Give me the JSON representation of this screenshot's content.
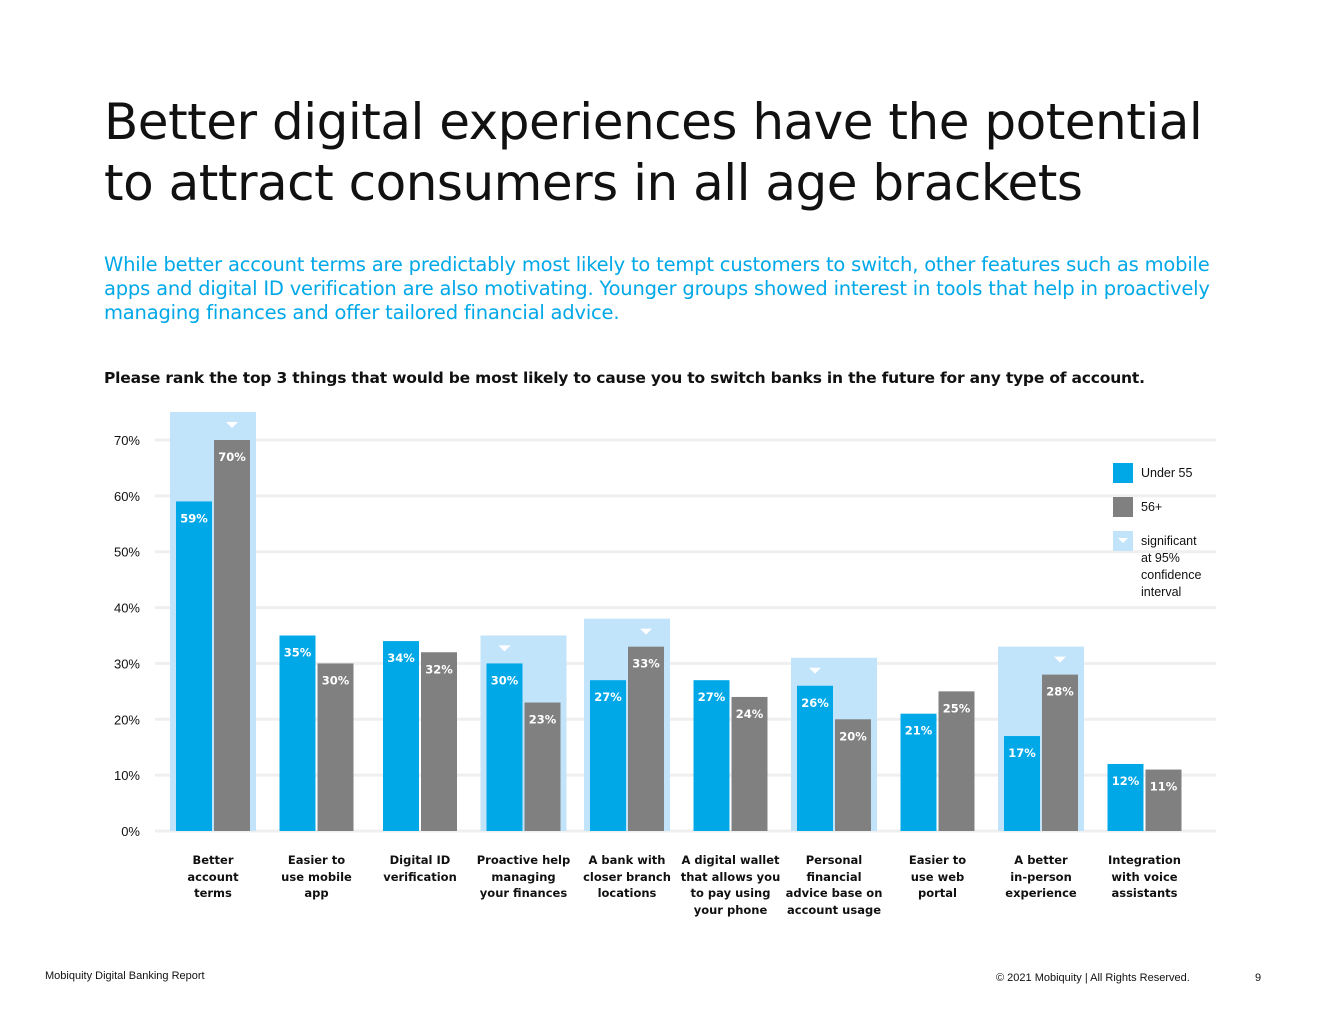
{
  "page": {
    "title_line1": "Better digital experiences have the potential",
    "title_line2": "to attract consumers in all age brackets",
    "subtitle": "While better account terms are predictably most likely to tempt customers to switch, other features such as mobile apps and digital ID verification are also motivating. Younger groups showed interest in tools that help in proactively managing finances and offer tailored financial advice.",
    "question": "Please rank the top 3 things that would be most likely to cause you to switch banks in the future for any type of account.",
    "footer_left": "Mobiquity Digital Banking Report",
    "footer_right": "© 2021 Mobiquity  |  All Rights Reserved.",
    "page_number": "9"
  },
  "colors": {
    "accent": "#00a8e8",
    "under55": "#00a8e8",
    "over56": "#808080",
    "significant": "#c2e4fa",
    "text": "#111111",
    "grid": "#efefef"
  },
  "chart_data": {
    "type": "bar",
    "title": "Please rank the top 3 things that would be most likely to cause you to switch banks in the future for any type of account.",
    "xlabel": "",
    "ylabel": "",
    "ylim": [
      0,
      70
    ],
    "yticks": [
      0,
      10,
      20,
      30,
      40,
      50,
      60,
      70
    ],
    "ytick_labels": [
      "0%",
      "10%",
      "20%",
      "30%",
      "40%",
      "50%",
      "60%",
      "70%"
    ],
    "categories": [
      "Better account terms",
      "Easier to use mobile app",
      "Digital ID verification",
      "Proactive help managing your finances",
      "A bank with closer branch locations",
      "A digital wallet that allows you to pay using your phone",
      "Personal financial advice base on account usage",
      "Easier to use web portal",
      "A better in-person experience",
      "Integration with voice assistants"
    ],
    "category_lines": [
      [
        "Better",
        "account",
        "terms"
      ],
      [
        "Easier to",
        "use mobile",
        "app"
      ],
      [
        "Digital ID",
        "verification"
      ],
      [
        "Proactive help",
        "managing",
        "your finances"
      ],
      [
        "A bank with",
        "closer branch",
        "locations"
      ],
      [
        "A digital wallet",
        "that allows you",
        "to pay using",
        "your phone"
      ],
      [
        "Personal",
        "financial",
        "advice base on",
        "account usage"
      ],
      [
        "Easier to",
        "use web",
        "portal"
      ],
      [
        "A better",
        "in-person",
        "experience"
      ],
      [
        "Integration",
        "with voice",
        "assistants"
      ]
    ],
    "series": [
      {
        "name": "Under 55",
        "values": [
          59,
          35,
          34,
          30,
          27,
          27,
          26,
          21,
          17,
          12
        ],
        "labels": [
          "59%",
          "35%",
          "34%",
          "30%",
          "27%",
          "27%",
          "26%",
          "21%",
          "17%",
          "12%"
        ]
      },
      {
        "name": "56+",
        "values": [
          70,
          30,
          32,
          23,
          33,
          24,
          20,
          25,
          28,
          11
        ],
        "labels": [
          "70%",
          "30%",
          "32%",
          "23%",
          "33%",
          "24%",
          "20%",
          "25%",
          "28%",
          "11%"
        ]
      }
    ],
    "significant": [
      true,
      false,
      false,
      true,
      true,
      false,
      true,
      false,
      true,
      false
    ],
    "significant_higher_series": [
      "56+",
      null,
      null,
      "Under 55",
      "56+",
      null,
      "Under 55",
      null,
      "56+",
      null
    ],
    "legend": {
      "under55": "Under 55",
      "over56": "56+",
      "significant_line1": "significant",
      "significant_line2": "at 95%",
      "significant_line3": "confidence",
      "significant_line4": "interval"
    },
    "grid": true,
    "legend_position": "right"
  }
}
